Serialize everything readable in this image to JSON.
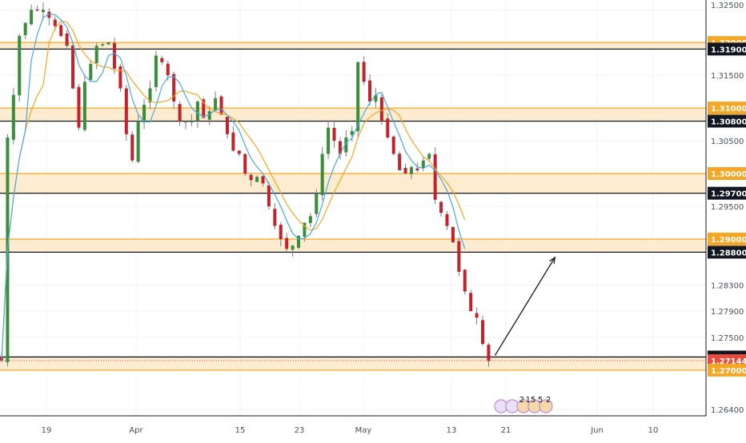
{
  "chart_data": {
    "type": "candlestick",
    "x_ticks": [
      "19",
      "Apr",
      "15",
      "23",
      "May",
      "13",
      "21",
      "Jun",
      "10"
    ],
    "y_ticks": [
      "1.32500",
      "1.32000",
      "1.31900",
      "1.31500",
      "1.31000",
      "1.30800",
      "1.30500",
      "1.30000",
      "1.29700",
      "1.29500",
      "1.29000",
      "1.28800",
      "1.28300",
      "1.27900",
      "1.27500",
      "1.27200",
      "1.27144",
      "1.27000",
      "1.26400"
    ],
    "ylim": [
      1.2625,
      1.3265
    ],
    "support_resistance_zones": [
      {
        "top": 1.32,
        "bottom": 1.319
      },
      {
        "top": 1.31,
        "bottom": 1.308
      },
      {
        "top": 1.3,
        "bottom": 1.297
      },
      {
        "top": 1.29,
        "bottom": 1.288
      },
      {
        "top": 1.272,
        "bottom": 1.27
      }
    ],
    "key_levels_black": [
      1.319,
      1.308,
      1.297,
      1.288,
      1.272
    ],
    "key_levels_orange": [
      1.32,
      1.31,
      1.3,
      1.29,
      1.27
    ],
    "current_price": 1.27144,
    "series": [
      {
        "type": "moving-average",
        "color": "#4aa8e0"
      },
      {
        "type": "moving-average",
        "color": "#f5a623"
      }
    ],
    "price_path": [
      [
        1,
        1.3055
      ],
      [
        2,
        1.312
      ],
      [
        3,
        1.321
      ],
      [
        5,
        1.325
      ],
      [
        7,
        1.325
      ],
      [
        9,
        1.3225
      ],
      [
        11,
        1.3195
      ],
      [
        12,
        1.313
      ],
      [
        13,
        1.307
      ],
      [
        14,
        1.314
      ],
      [
        16,
        1.3195
      ],
      [
        18,
        1.32
      ],
      [
        19,
        1.316
      ],
      [
        20,
        1.313
      ],
      [
        21,
        1.306
      ],
      [
        22,
        1.302
      ],
      [
        23,
        1.308
      ],
      [
        25,
        1.313
      ],
      [
        26,
        1.318
      ],
      [
        27,
        1.317
      ],
      [
        28,
        1.315
      ],
      [
        29,
        1.311
      ],
      [
        30,
        1.308
      ],
      [
        32,
        1.308
      ],
      [
        33,
        1.311
      ],
      [
        34,
        1.3085
      ],
      [
        35,
        1.3095
      ],
      [
        36,
        1.3115
      ],
      [
        37,
        1.309
      ],
      [
        38,
        1.306
      ],
      [
        39,
        1.3035
      ],
      [
        40,
        1.303
      ],
      [
        41,
        1.3
      ],
      [
        42,
        1.299
      ],
      [
        43,
        1.2995
      ],
      [
        44,
        1.2985
      ],
      [
        45,
        1.295
      ],
      [
        46,
        1.292
      ],
      [
        47,
        1.29
      ],
      [
        48,
        1.2885
      ],
      [
        49,
        1.289
      ],
      [
        50,
        1.2905
      ],
      [
        51,
        1.2925
      ],
      [
        52,
        1.2935
      ],
      [
        53,
        1.297
      ],
      [
        54,
        1.303
      ],
      [
        55,
        1.307
      ],
      [
        56,
        1.305
      ],
      [
        57,
        1.303
      ],
      [
        58,
        1.3055
      ],
      [
        59,
        1.3065
      ],
      [
        60,
        1.317
      ],
      [
        61,
        1.314
      ],
      [
        62,
        1.311
      ],
      [
        63,
        1.312
      ],
      [
        64,
        1.308
      ],
      [
        65,
        1.3055
      ],
      [
        66,
        1.303
      ],
      [
        67,
        1.3005
      ],
      [
        68,
        1.3
      ],
      [
        69,
        1.301
      ],
      [
        70,
        1.3005
      ],
      [
        71,
        1.302
      ],
      [
        72,
        1.303
      ],
      [
        73,
        1.296
      ],
      [
        74,
        1.294
      ],
      [
        75,
        1.292
      ],
      [
        76,
        1.2895
      ],
      [
        77,
        1.285
      ],
      [
        78,
        1.282
      ],
      [
        79,
        1.279
      ],
      [
        80,
        1.278
      ],
      [
        81,
        1.274
      ],
      [
        82,
        1.2714
      ]
    ],
    "projection_arrow": {
      "from": [
        82,
        1.272
      ],
      "to": [
        91,
        1.2872
      ]
    },
    "economic_events": {
      "labels": [
        "2",
        "15",
        "5",
        "2"
      ]
    }
  }
}
